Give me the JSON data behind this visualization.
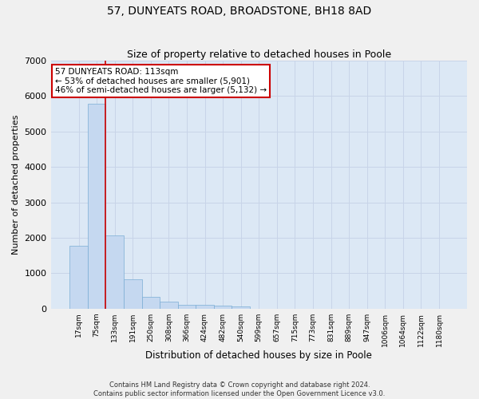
{
  "title": "57, DUNYEATS ROAD, BROADSTONE, BH18 8AD",
  "subtitle": "Size of property relative to detached houses in Poole",
  "xlabel": "Distribution of detached houses by size in Poole",
  "ylabel": "Number of detached properties",
  "footer_line1": "Contains HM Land Registry data © Crown copyright and database right 2024.",
  "footer_line2": "Contains public sector information licensed under the Open Government Licence v3.0.",
  "bin_labels": [
    "17sqm",
    "75sqm",
    "133sqm",
    "191sqm",
    "250sqm",
    "308sqm",
    "366sqm",
    "424sqm",
    "482sqm",
    "540sqm",
    "599sqm",
    "657sqm",
    "715sqm",
    "773sqm",
    "831sqm",
    "889sqm",
    "947sqm",
    "1006sqm",
    "1064sqm",
    "1122sqm",
    "1180sqm"
  ],
  "bar_values": [
    1780,
    5780,
    2060,
    820,
    340,
    200,
    120,
    110,
    90,
    70,
    0,
    0,
    0,
    0,
    0,
    0,
    0,
    0,
    0,
    0,
    0
  ],
  "bar_color": "#c5d8f0",
  "bar_edge_color": "#7aadd4",
  "vline_color": "#cc0000",
  "annotation_text": "57 DUNYEATS ROAD: 113sqm\n← 53% of detached houses are smaller (5,901)\n46% of semi-detached houses are larger (5,132) →",
  "annotation_box_color": "#ffffff",
  "annotation_box_edge_color": "#cc0000",
  "ylim": [
    0,
    7000
  ],
  "yticks": [
    0,
    1000,
    2000,
    3000,
    4000,
    5000,
    6000,
    7000
  ],
  "grid_color": "#c8d4e8",
  "plot_bg_color": "#dce8f5",
  "fig_bg_color": "#f0f0f0",
  "title_fontsize": 10,
  "subtitle_fontsize": 9
}
